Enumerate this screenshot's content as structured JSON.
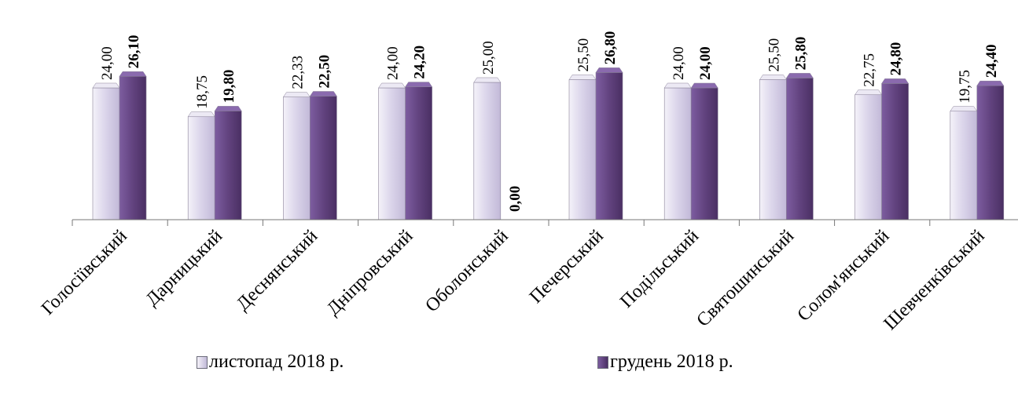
{
  "chart_data": {
    "type": "bar",
    "categories": [
      "Голосіївський",
      "Дарницький",
      "Деснянський",
      "Дніпровський",
      "Оболонський",
      "Печерський",
      "Подільський",
      "Святошинський",
      "Солом'янський",
      "Шевченківський"
    ],
    "series": [
      {
        "name": "листопад 2018 р.",
        "values": [
          24.0,
          18.75,
          22.33,
          24.0,
          25.0,
          25.5,
          24.0,
          25.5,
          22.75,
          19.75
        ],
        "labels": [
          "24,00",
          "18,75",
          "22,33",
          "24,00",
          "25,00",
          "25,50",
          "24,00",
          "25,50",
          "22,75",
          "19,75"
        ],
        "color": "#d6d0e6"
      },
      {
        "name": "грудень 2018 р.",
        "values": [
          26.1,
          19.8,
          22.5,
          24.2,
          0.0,
          26.8,
          24.0,
          25.8,
          24.8,
          24.4
        ],
        "labels": [
          "26,10",
          "19,80",
          "22,50",
          "24,20",
          "0,00",
          "26,80",
          "24,00",
          "25,80",
          "24,80",
          "24,40"
        ],
        "color": "#6b4a8c"
      }
    ],
    "ylim": [
      0,
      28
    ],
    "grid": false,
    "legend_position": "bottom",
    "title": "",
    "xlabel": "",
    "ylabel": ""
  }
}
